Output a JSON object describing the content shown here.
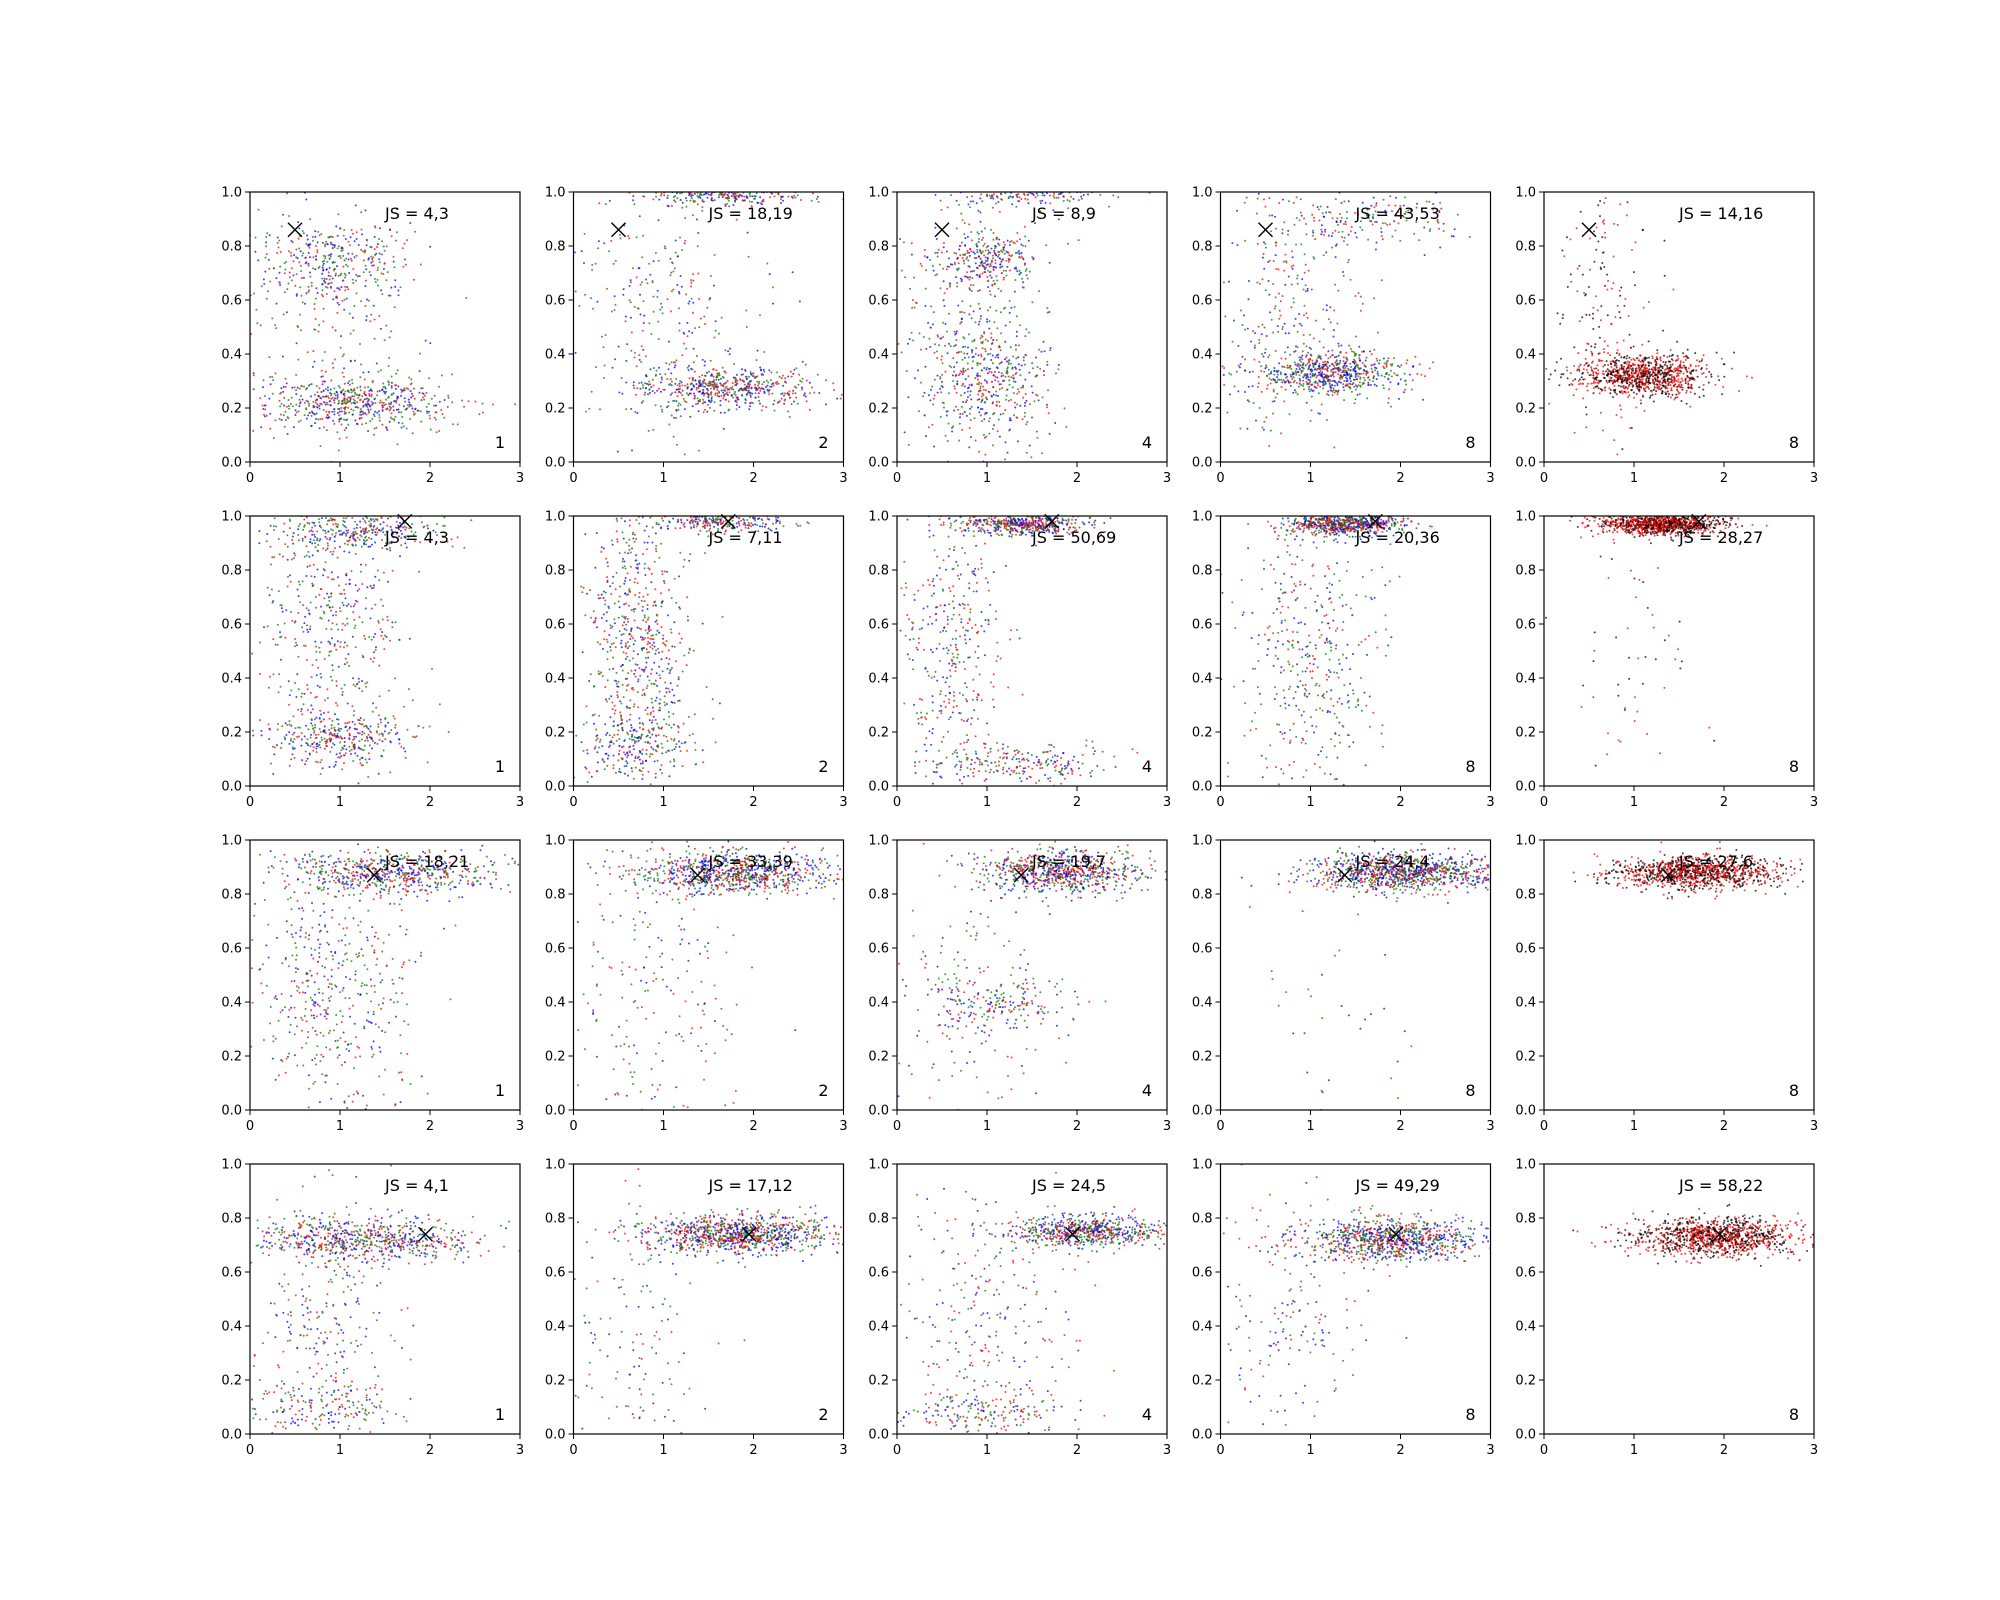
{
  "chart_data": {
    "type": "scatter",
    "layout": {
      "rows": 4,
      "cols": 5
    },
    "xlim": [
      0,
      3
    ],
    "ylim": [
      0,
      1
    ],
    "xticks": [
      "0",
      "1",
      "2",
      "3"
    ],
    "yticks": [
      "0.0",
      "0.2",
      "0.4",
      "0.6",
      "0.8",
      "1.0"
    ],
    "grid": false,
    "series_colors": {
      "blue": "#0000ff",
      "green": "#008000",
      "red": "#ff0000",
      "black": "#000000"
    },
    "marker": {
      "symbol": "x",
      "color": "#000000"
    },
    "panels": [
      {
        "row": 0,
        "col": 0,
        "label": "JS = 4,3",
        "corner": "1",
        "marker": [
          0.5,
          0.86
        ],
        "colors": [
          "blue",
          "green",
          "red"
        ],
        "clusters": [
          {
            "x": 1.2,
            "y": 0.22,
            "sx": 0.5,
            "sy": 0.05,
            "w": 0.5
          },
          {
            "x": 0.9,
            "y": 0.75,
            "sx": 0.45,
            "sy": 0.08,
            "w": 0.3
          },
          {
            "x": 0.8,
            "y": 0.5,
            "sx": 0.5,
            "sy": 0.25,
            "w": 0.2
          }
        ]
      },
      {
        "row": 0,
        "col": 1,
        "label": "JS = 18,19",
        "corner": "2",
        "marker": [
          0.5,
          0.86
        ],
        "colors": [
          "blue",
          "red",
          "green"
        ],
        "clusters": [
          {
            "x": 1.7,
            "y": 0.27,
            "sx": 0.5,
            "sy": 0.04,
            "w": 0.5
          },
          {
            "x": 1.7,
            "y": 0.99,
            "sx": 0.5,
            "sy": 0.02,
            "w": 0.25
          },
          {
            "x": 1.0,
            "y": 0.55,
            "sx": 0.5,
            "sy": 0.25,
            "w": 0.25
          }
        ]
      },
      {
        "row": 0,
        "col": 2,
        "label": "JS = 8,9",
        "corner": "4",
        "marker": [
          0.5,
          0.86
        ],
        "colors": [
          "blue",
          "green",
          "red"
        ],
        "clusters": [
          {
            "x": 1.0,
            "y": 0.3,
            "sx": 0.35,
            "sy": 0.12,
            "w": 0.35
          },
          {
            "x": 1.0,
            "y": 0.75,
            "sx": 0.3,
            "sy": 0.05,
            "w": 0.25
          },
          {
            "x": 0.8,
            "y": 0.5,
            "sx": 0.4,
            "sy": 0.3,
            "w": 0.25
          },
          {
            "x": 1.5,
            "y": 0.99,
            "sx": 0.4,
            "sy": 0.02,
            "w": 0.15
          }
        ]
      },
      {
        "row": 0,
        "col": 3,
        "label": "JS = 43,53",
        "corner": "8",
        "marker": [
          0.5,
          0.86
        ],
        "colors": [
          "blue",
          "green",
          "red"
        ],
        "clusters": [
          {
            "x": 1.2,
            "y": 0.33,
            "sx": 0.45,
            "sy": 0.04,
            "w": 0.6
          },
          {
            "x": 0.8,
            "y": 0.6,
            "sx": 0.4,
            "sy": 0.25,
            "w": 0.25
          },
          {
            "x": 1.7,
            "y": 0.9,
            "sx": 0.5,
            "sy": 0.05,
            "w": 0.15
          }
        ]
      },
      {
        "row": 0,
        "col": 4,
        "label": "JS = 14,16",
        "corner": "8",
        "marker": [
          0.5,
          0.86
        ],
        "colors": [
          "black",
          "red"
        ],
        "clusters": [
          {
            "x": 1.1,
            "y": 0.32,
            "sx": 0.35,
            "sy": 0.04,
            "w": 0.85
          },
          {
            "x": 0.6,
            "y": 0.6,
            "sx": 0.3,
            "sy": 0.25,
            "w": 0.15
          }
        ]
      },
      {
        "row": 1,
        "col": 0,
        "label": "JS = 4,3",
        "corner": "1",
        "marker": [
          1.72,
          0.98
        ],
        "colors": [
          "blue",
          "green",
          "red"
        ],
        "clusters": [
          {
            "x": 1.2,
            "y": 0.95,
            "sx": 0.5,
            "sy": 0.04,
            "w": 0.3
          },
          {
            "x": 0.9,
            "y": 0.6,
            "sx": 0.4,
            "sy": 0.25,
            "w": 0.4
          },
          {
            "x": 1.0,
            "y": 0.18,
            "sx": 0.4,
            "sy": 0.05,
            "w": 0.3
          }
        ]
      },
      {
        "row": 1,
        "col": 1,
        "label": "JS = 7,11",
        "corner": "2",
        "marker": [
          1.72,
          0.98
        ],
        "colors": [
          "blue",
          "green",
          "red"
        ],
        "clusters": [
          {
            "x": 0.7,
            "y": 0.5,
            "sx": 0.3,
            "sy": 0.3,
            "w": 0.6
          },
          {
            "x": 1.6,
            "y": 0.98,
            "sx": 0.4,
            "sy": 0.02,
            "w": 0.25
          },
          {
            "x": 0.7,
            "y": 0.15,
            "sx": 0.3,
            "sy": 0.06,
            "w": 0.15
          }
        ]
      },
      {
        "row": 1,
        "col": 2,
        "label": "JS = 50,69",
        "corner": "4",
        "marker": [
          1.72,
          0.98
        ],
        "colors": [
          "blue",
          "green",
          "red"
        ],
        "clusters": [
          {
            "x": 1.4,
            "y": 0.97,
            "sx": 0.35,
            "sy": 0.02,
            "w": 0.45
          },
          {
            "x": 0.6,
            "y": 0.5,
            "sx": 0.3,
            "sy": 0.3,
            "w": 0.35
          },
          {
            "x": 1.4,
            "y": 0.08,
            "sx": 0.5,
            "sy": 0.04,
            "w": 0.2
          }
        ]
      },
      {
        "row": 1,
        "col": 3,
        "label": "JS = 20,36",
        "corner": "8",
        "marker": [
          1.72,
          0.98
        ],
        "colors": [
          "blue",
          "green",
          "red"
        ],
        "clusters": [
          {
            "x": 1.4,
            "y": 0.97,
            "sx": 0.3,
            "sy": 0.02,
            "w": 0.6
          },
          {
            "x": 1.0,
            "y": 0.5,
            "sx": 0.4,
            "sy": 0.28,
            "w": 0.4
          }
        ]
      },
      {
        "row": 1,
        "col": 4,
        "label": "JS = 28,27",
        "corner": "8",
        "marker": [
          1.72,
          0.98
        ],
        "colors": [
          "black",
          "red"
        ],
        "clusters": [
          {
            "x": 1.3,
            "y": 0.97,
            "sx": 0.35,
            "sy": 0.02,
            "w": 0.95
          },
          {
            "x": 1.0,
            "y": 0.5,
            "sx": 0.4,
            "sy": 0.25,
            "w": 0.05
          }
        ]
      },
      {
        "row": 2,
        "col": 0,
        "label": "JS = 18,21",
        "corner": "1",
        "marker": [
          1.38,
          0.87
        ],
        "colors": [
          "blue",
          "green",
          "red"
        ],
        "clusters": [
          {
            "x": 1.6,
            "y": 0.88,
            "sx": 0.6,
            "sy": 0.04,
            "w": 0.55
          },
          {
            "x": 0.9,
            "y": 0.45,
            "sx": 0.5,
            "sy": 0.25,
            "w": 0.45
          }
        ]
      },
      {
        "row": 2,
        "col": 1,
        "label": "JS = 33,39",
        "corner": "2",
        "marker": [
          1.38,
          0.87
        ],
        "colors": [
          "blue",
          "green",
          "red"
        ],
        "clusters": [
          {
            "x": 1.8,
            "y": 0.88,
            "sx": 0.55,
            "sy": 0.04,
            "w": 0.8
          },
          {
            "x": 1.0,
            "y": 0.4,
            "sx": 0.5,
            "sy": 0.3,
            "w": 0.2
          }
        ]
      },
      {
        "row": 2,
        "col": 2,
        "label": "JS = 19,7",
        "corner": "4",
        "marker": [
          1.38,
          0.87
        ],
        "colors": [
          "blue",
          "green",
          "red"
        ],
        "clusters": [
          {
            "x": 1.8,
            "y": 0.88,
            "sx": 0.45,
            "sy": 0.04,
            "w": 0.7
          },
          {
            "x": 1.2,
            "y": 0.39,
            "sx": 0.4,
            "sy": 0.05,
            "w": 0.15
          },
          {
            "x": 0.9,
            "y": 0.4,
            "sx": 0.5,
            "sy": 0.25,
            "w": 0.15
          }
        ]
      },
      {
        "row": 2,
        "col": 3,
        "label": "JS = 24,4",
        "corner": "8",
        "marker": [
          1.38,
          0.87
        ],
        "colors": [
          "blue",
          "green",
          "red"
        ],
        "clusters": [
          {
            "x": 2.0,
            "y": 0.88,
            "sx": 0.5,
            "sy": 0.035,
            "w": 0.97
          },
          {
            "x": 1.2,
            "y": 0.3,
            "sx": 0.5,
            "sy": 0.25,
            "w": 0.03
          }
        ]
      },
      {
        "row": 2,
        "col": 4,
        "label": "JS = 27,6",
        "corner": "8",
        "marker": [
          1.38,
          0.87
        ],
        "colors": [
          "black",
          "red"
        ],
        "clusters": [
          {
            "x": 1.7,
            "y": 0.88,
            "sx": 0.45,
            "sy": 0.03,
            "w": 1.0
          }
        ]
      },
      {
        "row": 3,
        "col": 0,
        "label": "JS = 4,1",
        "corner": "1",
        "marker": [
          1.95,
          0.74
        ],
        "colors": [
          "blue",
          "green",
          "red"
        ],
        "clusters": [
          {
            "x": 1.3,
            "y": 0.72,
            "sx": 0.6,
            "sy": 0.04,
            "w": 0.6
          },
          {
            "x": 0.8,
            "y": 0.4,
            "sx": 0.4,
            "sy": 0.25,
            "w": 0.25
          },
          {
            "x": 0.8,
            "y": 0.1,
            "sx": 0.4,
            "sy": 0.05,
            "w": 0.15
          }
        ]
      },
      {
        "row": 3,
        "col": 1,
        "label": "JS = 17,12",
        "corner": "2",
        "marker": [
          1.95,
          0.74
        ],
        "colors": [
          "blue",
          "red",
          "green"
        ],
        "clusters": [
          {
            "x": 1.8,
            "y": 0.74,
            "sx": 0.55,
            "sy": 0.035,
            "w": 0.88
          },
          {
            "x": 0.7,
            "y": 0.35,
            "sx": 0.4,
            "sy": 0.25,
            "w": 0.12
          }
        ]
      },
      {
        "row": 3,
        "col": 2,
        "label": "JS = 24,5",
        "corner": "4",
        "marker": [
          1.95,
          0.74
        ],
        "colors": [
          "blue",
          "green",
          "red"
        ],
        "clusters": [
          {
            "x": 2.1,
            "y": 0.75,
            "sx": 0.45,
            "sy": 0.03,
            "w": 0.6
          },
          {
            "x": 0.9,
            "y": 0.4,
            "sx": 0.5,
            "sy": 0.25,
            "w": 0.25
          },
          {
            "x": 0.9,
            "y": 0.08,
            "sx": 0.5,
            "sy": 0.04,
            "w": 0.15
          }
        ]
      },
      {
        "row": 3,
        "col": 3,
        "label": "JS = 49,29",
        "corner": "8",
        "marker": [
          1.95,
          0.74
        ],
        "colors": [
          "green",
          "blue",
          "red"
        ],
        "clusters": [
          {
            "x": 1.9,
            "y": 0.72,
            "sx": 0.5,
            "sy": 0.04,
            "w": 0.85
          },
          {
            "x": 0.8,
            "y": 0.4,
            "sx": 0.4,
            "sy": 0.25,
            "w": 0.15
          }
        ]
      },
      {
        "row": 3,
        "col": 4,
        "label": "JS = 58,22",
        "corner": "8",
        "marker": [
          1.95,
          0.74
        ],
        "colors": [
          "black",
          "red"
        ],
        "clusters": [
          {
            "x": 1.9,
            "y": 0.73,
            "sx": 0.45,
            "sy": 0.035,
            "w": 1.0
          }
        ]
      }
    ]
  }
}
